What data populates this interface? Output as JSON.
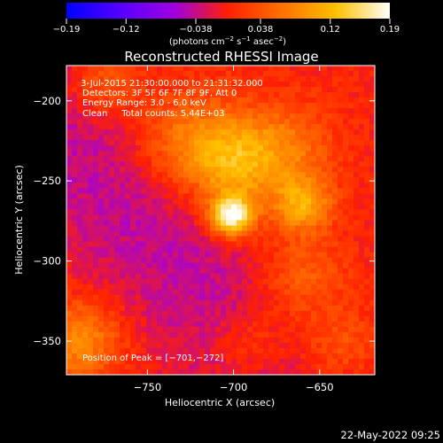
{
  "chart_data": {
    "type": "heatmap",
    "title": "Reconstructed RHESSI Image",
    "xlabel": "Heliocentric X (arcsec)",
    "ylabel": "Heliocentric Y (arcsec)",
    "xlim": [
      -797,
      -618
    ],
    "ylim": [
      -371,
      -178
    ],
    "xticks": [
      {
        "value": -750,
        "label": "−750"
      },
      {
        "value": -700,
        "label": "−700"
      },
      {
        "value": -650,
        "label": "−650"
      }
    ],
    "yticks": [
      {
        "value": -200,
        "label": "−200"
      },
      {
        "value": -250,
        "label": "−250"
      },
      {
        "value": -300,
        "label": "−300"
      },
      {
        "value": -350,
        "label": "−350"
      }
    ],
    "colorbar": {
      "range": [
        -0.19,
        0.19
      ],
      "ticks": [
        {
          "value": -0.19,
          "label": "−0.19"
        },
        {
          "value": -0.12,
          "label": "−0.12"
        },
        {
          "value": -0.038,
          "label": "−0.038"
        },
        {
          "value": 0.038,
          "label": "0.038"
        },
        {
          "value": 0.12,
          "label": "0.12"
        },
        {
          "value": 0.19,
          "label": "0.19"
        }
      ],
      "stops": [
        "#0000ff",
        "#5500ff",
        "#a000e0",
        "#ff2000",
        "#ff7000",
        "#ffc000",
        "#ffffff"
      ]
    },
    "units": {
      "prefix": "(photons cm",
      "sup1": "−2",
      "mid1": " s",
      "sup2": "−1",
      "mid2": " asec",
      "sup3": "−2",
      "suffix": ")"
    },
    "annotations": [
      " 3-Jul-2015 21:30:00.000 to 21:31:32.000",
      "Detectors: 3F 5F 6F 7F 8F 9F, Att 0",
      "Energy Range: 3.0 - 6.0 keV",
      "Clean     Total counts: 5.44E+03"
    ],
    "peak_text": "Position of Peak = [−701,−272]",
    "peak": {
      "x": -701,
      "y": -272
    },
    "sources": [
      {
        "x": -701,
        "y": -272,
        "amp": 1.0,
        "sigma": 9
      },
      {
        "x": -700,
        "y": -240,
        "amp": 0.45,
        "sigma": 18
      },
      {
        "x": -660,
        "y": -265,
        "amp": 0.55,
        "sigma": 12
      },
      {
        "x": -725,
        "y": -225,
        "amp": 0.38,
        "sigma": 22
      },
      {
        "x": -670,
        "y": -230,
        "amp": 0.35,
        "sigma": 20
      },
      {
        "x": -660,
        "y": -310,
        "amp": 0.3,
        "sigma": 18
      },
      {
        "x": -790,
        "y": -350,
        "amp": 0.45,
        "sigma": 18
      },
      {
        "x": -640,
        "y": -355,
        "amp": 0.3,
        "sigma": 18
      },
      {
        "x": -690,
        "y": -352,
        "amp": 0.25,
        "sigma": 16
      },
      {
        "x": -775,
        "y": -190,
        "amp": 0.28,
        "sigma": 14
      }
    ]
  },
  "footer": {
    "timestamp": "22-May-2022 09:25"
  }
}
